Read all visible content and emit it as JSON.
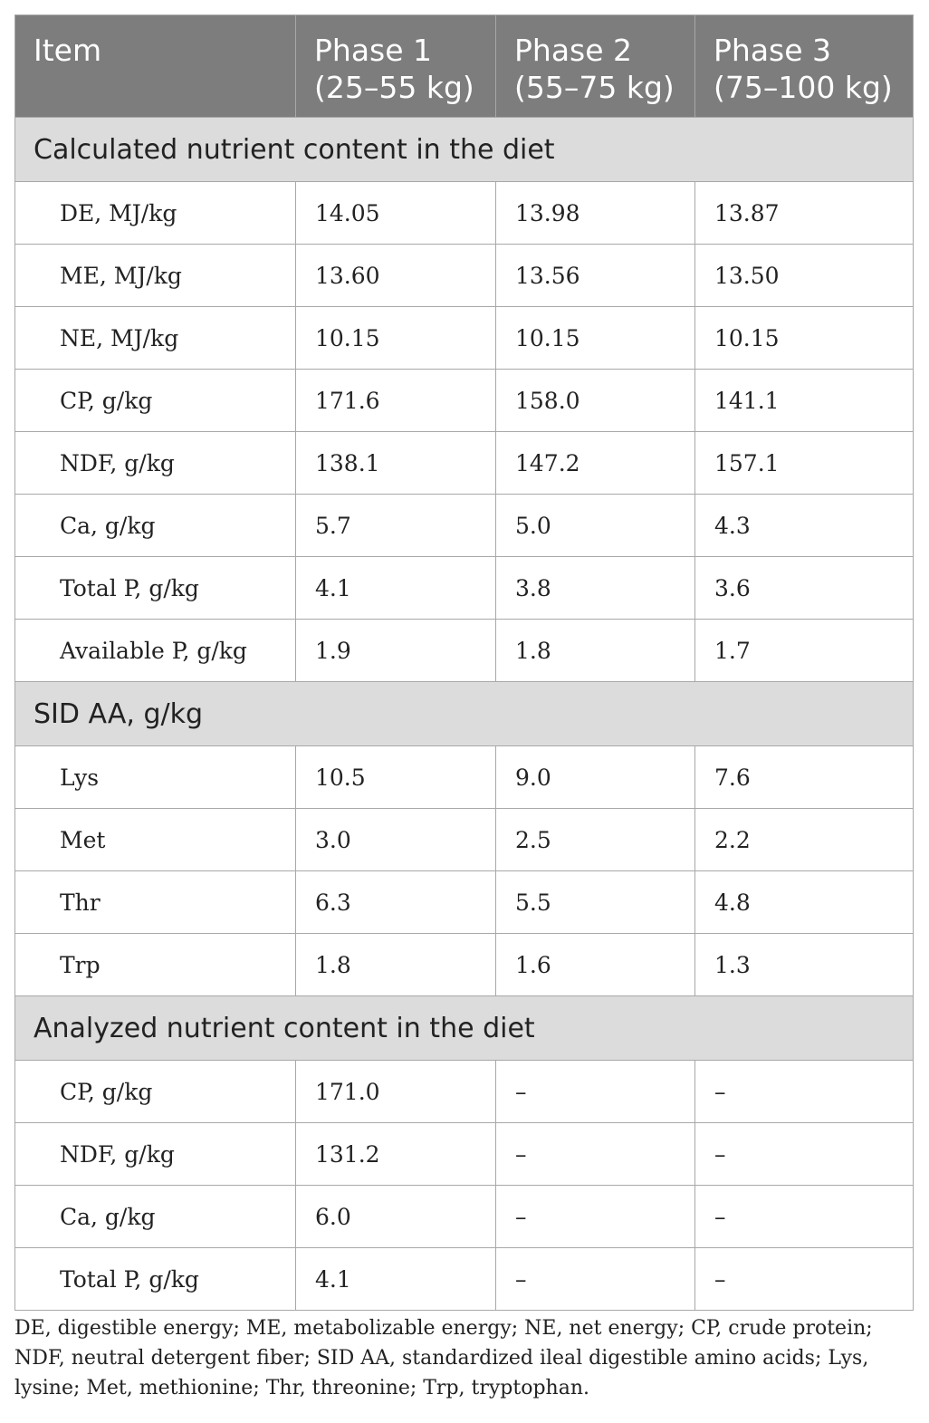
{
  "table": {
    "headers": [
      "Item",
      "Phase 1\n(25–55 kg)",
      "Phase 2\n(55–75 kg)",
      "Phase 3\n(75–100 kg)"
    ],
    "sections": [
      {
        "title": "Calculated nutrient content in the diet",
        "rows": [
          {
            "item": "DE, MJ/kg",
            "p1": "14.05",
            "p2": "13.98",
            "p3": "13.87"
          },
          {
            "item": "ME, MJ/kg",
            "p1": "13.60",
            "p2": "13.56",
            "p3": "13.50"
          },
          {
            "item": "NE, MJ/kg",
            "p1": "10.15",
            "p2": "10.15",
            "p3": "10.15"
          },
          {
            "item": "CP, g/kg",
            "p1": "171.6",
            "p2": "158.0",
            "p3": "141.1"
          },
          {
            "item": "NDF, g/kg",
            "p1": "138.1",
            "p2": "147.2",
            "p3": "157.1"
          },
          {
            "item": "Ca, g/kg",
            "p1": "5.7",
            "p2": "5.0",
            "p3": "4.3"
          },
          {
            "item": "Total P, g/kg",
            "p1": "4.1",
            "p2": "3.8",
            "p3": "3.6"
          },
          {
            "item": "Available P, g/kg",
            "p1": "1.9",
            "p2": "1.8",
            "p3": "1.7"
          }
        ]
      },
      {
        "title": "SID AA, g/kg",
        "rows": [
          {
            "item": "Lys",
            "p1": "10.5",
            "p2": "9.0",
            "p3": "7.6"
          },
          {
            "item": "Met",
            "p1": "3.0",
            "p2": "2.5",
            "p3": "2.2"
          },
          {
            "item": "Thr",
            "p1": "6.3",
            "p2": "5.5",
            "p3": "4.8"
          },
          {
            "item": "Trp",
            "p1": "1.8",
            "p2": "1.6",
            "p3": "1.3"
          }
        ]
      },
      {
        "title": "Analyzed nutrient content in the diet",
        "rows": [
          {
            "item": "CP, g/kg",
            "p1": "171.0",
            "p2": "–",
            "p3": "–"
          },
          {
            "item": "NDF, g/kg",
            "p1": "131.2",
            "p2": "–",
            "p3": "–"
          },
          {
            "item": "Ca, g/kg",
            "p1": "6.0",
            "p2": "–",
            "p3": "–"
          },
          {
            "item": "Total P, g/kg",
            "p1": "4.1",
            "p2": "–",
            "p3": "–"
          }
        ]
      }
    ]
  },
  "footnote": "DE, digestible energy; ME, metabolizable energy; NE, net energy; CP, crude protein; NDF, neutral detergent fiber; SID AA, standardized ileal digestible amino acids; Lys, lysine; Met, methionine; Thr, threonine; Trp, tryptophan."
}
